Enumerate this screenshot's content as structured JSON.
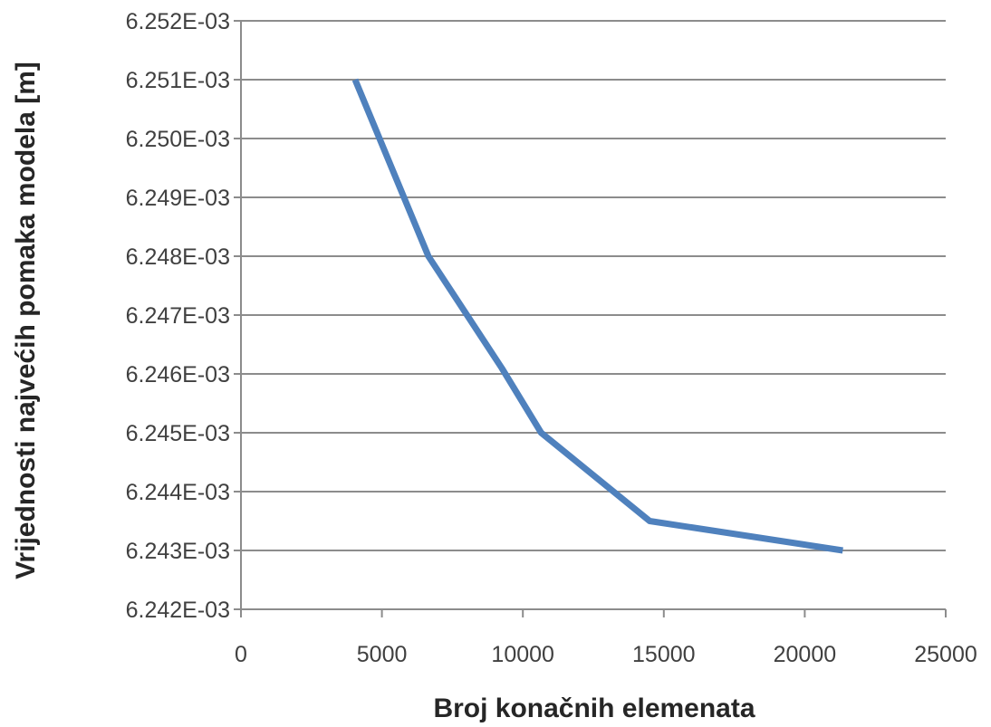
{
  "chart_data": {
    "type": "line",
    "title": "",
    "xlabel": "Broj konačnih elemenata",
    "ylabel": "Vrijednosti najvećih pomaka modela [m]",
    "xlim": [
      0,
      25000
    ],
    "ylim": [
      0.006242,
      0.006252
    ],
    "x_ticks": [
      0,
      5000,
      10000,
      15000,
      20000,
      25000
    ],
    "x_tick_labels": [
      "0",
      "5000",
      "10000",
      "15000",
      "20000",
      "25000"
    ],
    "y_ticks": [
      0.006242,
      0.006243,
      0.006244,
      0.006245,
      0.006246,
      0.006247,
      0.006248,
      0.006249,
      0.00625,
      0.006251,
      0.006252
    ],
    "y_tick_labels": [
      "6.242E-03",
      "6.243E-03",
      "6.244E-03",
      "6.245E-03",
      "6.246E-03",
      "6.247E-03",
      "6.248E-03",
      "6.249E-03",
      "6.250E-03",
      "6.251E-03",
      "6.252E-03"
    ],
    "grid": "horizontal",
    "legend": "none",
    "series": [
      {
        "color": "#4f81bd",
        "x": [
          4050,
          6650,
          9250,
          10650,
          14500,
          21350
        ],
        "y": [
          0.006251,
          0.006248,
          0.0062461,
          0.006245,
          0.0062435,
          0.006243
        ]
      }
    ]
  }
}
